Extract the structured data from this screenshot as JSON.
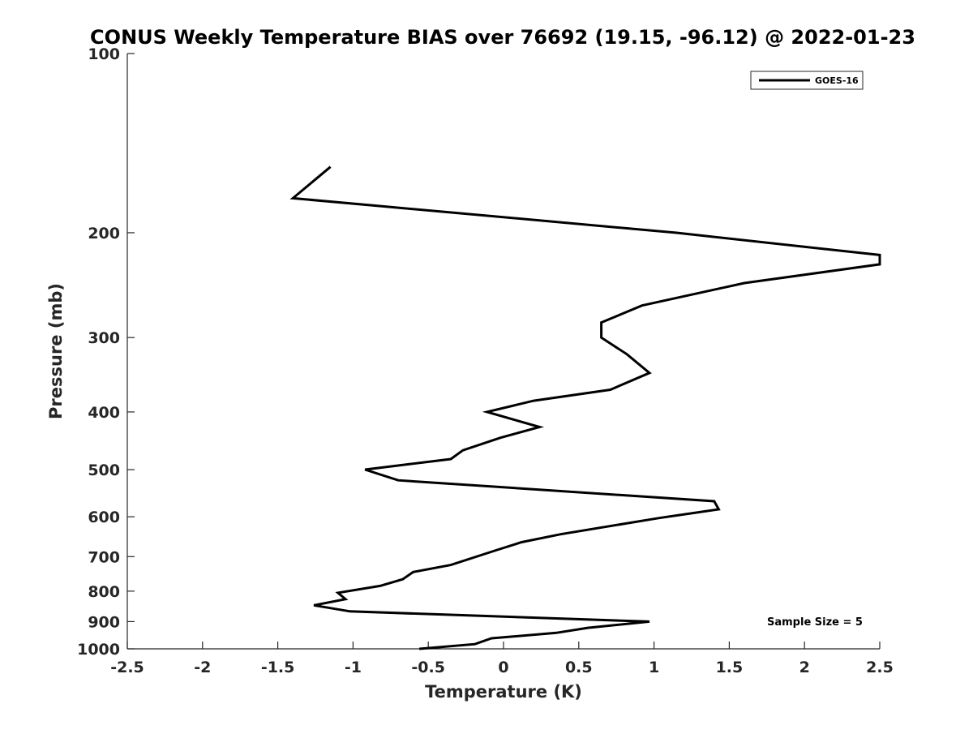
{
  "chart_data": {
    "type": "line",
    "title": "CONUS Weekly Temperature BIAS over 76692 (19.15, -96.12) @ 2022-01-23",
    "xlabel": "Temperature (K)",
    "ylabel": "Pressure (mb)",
    "xlim": [
      -2.5,
      2.5
    ],
    "ylim": [
      1000,
      100
    ],
    "yscale": "log",
    "y_reversed": true,
    "grid": false,
    "x_ticks": [
      -2.5,
      -2,
      -1.5,
      -1,
      -0.5,
      0,
      0.5,
      1,
      1.5,
      2,
      2.5
    ],
    "x_tick_labels": [
      "-2.5",
      "-2",
      "-1.5",
      "-1",
      "-0.5",
      "0",
      "0.5",
      "1",
      "1.5",
      "2",
      "2.5"
    ],
    "y_ticks": [
      100,
      200,
      300,
      400,
      500,
      600,
      700,
      800,
      900,
      1000
    ],
    "y_tick_labels": [
      "100",
      "200",
      "300",
      "400",
      "500",
      "600",
      "700",
      "800",
      "900",
      "1000"
    ],
    "legend_position": "top-right",
    "annotation": "Sample Size = 5",
    "series": [
      {
        "name": "GOES-16",
        "color": "#000000",
        "points": [
          [
            -1.15,
            155
          ],
          [
            -1.4,
            175
          ],
          [
            1.15,
            200
          ],
          [
            2.5,
            218
          ],
          [
            2.5,
            226
          ],
          [
            1.6,
            243
          ],
          [
            0.92,
            265
          ],
          [
            0.65,
            283
          ],
          [
            0.65,
            300
          ],
          [
            0.82,
            320
          ],
          [
            0.97,
            344
          ],
          [
            0.71,
            367
          ],
          [
            0.2,
            383
          ],
          [
            -0.11,
            400
          ],
          [
            0.24,
            424
          ],
          [
            -0.02,
            442
          ],
          [
            -0.27,
            464
          ],
          [
            -0.35,
            480
          ],
          [
            -0.92,
            500
          ],
          [
            -0.7,
            521
          ],
          [
            1.4,
            565
          ],
          [
            1.43,
            583
          ],
          [
            1.03,
            603
          ],
          [
            0.38,
            642
          ],
          [
            0.12,
            662
          ],
          [
            -0.05,
            683
          ],
          [
            -0.35,
            723
          ],
          [
            -0.6,
            743
          ],
          [
            -0.67,
            764
          ],
          [
            -0.82,
            784
          ],
          [
            -1.1,
            805
          ],
          [
            -1.05,
            825
          ],
          [
            -1.26,
            845
          ],
          [
            -1.02,
            865
          ],
          [
            0.97,
            900
          ],
          [
            0.56,
            922
          ],
          [
            0.35,
            940
          ],
          [
            -0.08,
            960
          ],
          [
            -0.19,
            982
          ],
          [
            -0.56,
            1000
          ]
        ]
      }
    ]
  }
}
